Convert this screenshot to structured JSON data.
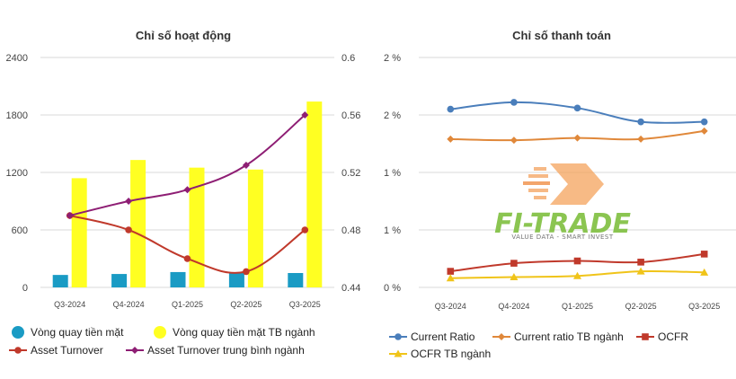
{
  "chart_data": [
    {
      "type": "bar",
      "title": "Chỉ số hoạt động",
      "categories": [
        "Q3-2024",
        "Q4-2024",
        "Q1-2025",
        "Q2-2025",
        "Q3-2025"
      ],
      "y_left": {
        "ylim": [
          0,
          2400
        ],
        "ticks": [
          "0",
          "600",
          "1200",
          "1800",
          "2400"
        ],
        "tick_values": [
          0,
          600,
          1200,
          1800,
          2400
        ]
      },
      "y_right": {
        "ylim": [
          0.44,
          0.6
        ],
        "ticks": [
          "0.44",
          "0.48",
          "0.52",
          "0.56",
          "0.6"
        ],
        "tick_values": [
          0.44,
          0.48,
          0.52,
          0.56,
          0.6
        ]
      },
      "series": [
        {
          "name": "Vòng quay tiền mặt",
          "kind": "bar",
          "axis": "left",
          "color": "#1a9bc4",
          "values": [
            130,
            140,
            160,
            150,
            150
          ]
        },
        {
          "name": "Vòng quay tiền mặt TB ngành",
          "kind": "bar",
          "axis": "left",
          "color": "#ffff22",
          "values": [
            1140,
            1330,
            1250,
            1230,
            1940
          ]
        },
        {
          "name": "Asset Turnover",
          "kind": "line",
          "axis": "right",
          "color": "#c0392b",
          "marker": "circle",
          "values": [
            0.49,
            0.48,
            0.46,
            0.451,
            0.48
          ]
        },
        {
          "name": "Asset Turnover trung bình ngành",
          "kind": "line",
          "axis": "right",
          "color": "#8e1e74",
          "marker": "diamond",
          "values": [
            0.49,
            0.5,
            0.508,
            0.525,
            0.56
          ]
        }
      ]
    },
    {
      "type": "line",
      "title": "Chỉ số thanh toán",
      "categories": [
        "Q3-2024",
        "Q4-2024",
        "Q1-2025",
        "Q2-2025",
        "Q3-2025"
      ],
      "y_left": {
        "ylim": [
          0,
          2
        ],
        "ticks": [
          "0 %",
          "1 %",
          "1 %",
          "2 %",
          "2 %"
        ],
        "tick_values": [
          0,
          0.5,
          1,
          1.5,
          2
        ]
      },
      "series": [
        {
          "name": "Current Ratio",
          "color": "#4a7ebb",
          "marker": "circle",
          "values": [
            1.55,
            1.61,
            1.56,
            1.44,
            1.44
          ]
        },
        {
          "name": "Current ratio TB ngành",
          "color": "#e0883a",
          "marker": "diamond",
          "values": [
            1.29,
            1.28,
            1.3,
            1.29,
            1.36
          ]
        },
        {
          "name": "OCFR",
          "color": "#c0392b",
          "marker": "square",
          "values": [
            0.14,
            0.21,
            0.23,
            0.22,
            0.29
          ]
        },
        {
          "name": "OCFR TB ngành",
          "color": "#f0c419",
          "marker": "triangle",
          "values": [
            0.08,
            0.09,
            0.1,
            0.14,
            0.13
          ]
        }
      ]
    }
  ],
  "watermark": {
    "brand": "FI-TRADE",
    "tagline": "VALUE DATA - SMART INVEST"
  }
}
